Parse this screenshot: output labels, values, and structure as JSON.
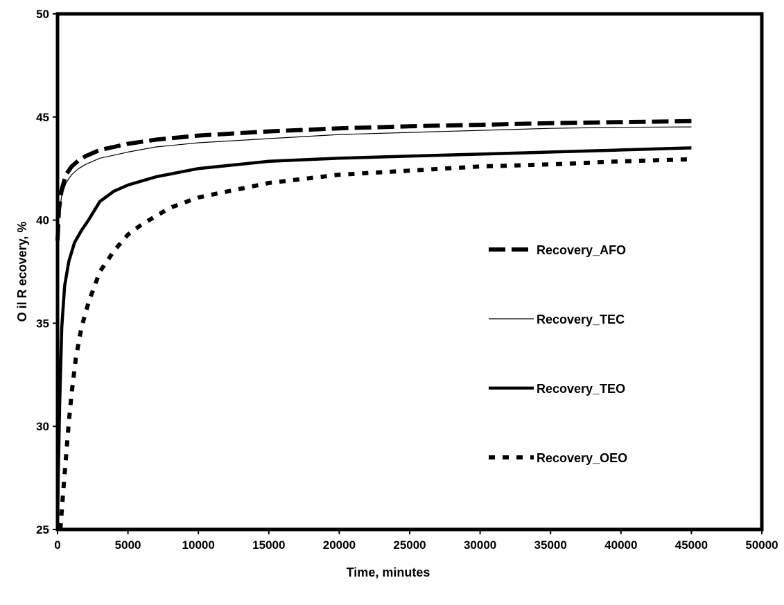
{
  "chart_data": {
    "type": "line",
    "title": "",
    "xlabel": "Time, minutes",
    "ylabel": "O il R ecovery, %",
    "xlim": [
      0,
      50000
    ],
    "ylim": [
      25,
      50
    ],
    "xticks": [
      "0",
      "5000",
      "10000",
      "15000",
      "20000",
      "25000",
      "30000",
      "35000",
      "40000",
      "45000",
      "50000"
    ],
    "yticks": [
      "25",
      "30",
      "35",
      "40",
      "45",
      "50"
    ],
    "grid": false,
    "legend_position": "right",
    "series": [
      {
        "name": "Recovery_AFO",
        "style": "long-dash",
        "color": "#000000",
        "x": [
          0,
          100,
          300,
          600,
          1000,
          1500,
          2000,
          3000,
          4000,
          5000,
          7000,
          10000,
          15000,
          20000,
          25000,
          30000,
          35000,
          40000,
          45000
        ],
        "y": [
          39.0,
          40.5,
          41.5,
          42.2,
          42.6,
          42.9,
          43.1,
          43.4,
          43.55,
          43.7,
          43.9,
          44.1,
          44.3,
          44.45,
          44.55,
          44.62,
          44.7,
          44.75,
          44.8
        ]
      },
      {
        "name": "Recovery_TEC",
        "style": "thin",
        "color": "#000000",
        "x": [
          0,
          100,
          300,
          600,
          1000,
          1500,
          2000,
          3000,
          4000,
          5000,
          7000,
          10000,
          15000,
          20000,
          25000,
          30000,
          35000,
          40000,
          45000
        ],
        "y": [
          39.0,
          40.3,
          41.2,
          41.8,
          42.2,
          42.5,
          42.7,
          43.0,
          43.15,
          43.3,
          43.55,
          43.75,
          43.95,
          44.15,
          44.25,
          44.35,
          44.45,
          44.5,
          44.52
        ]
      },
      {
        "name": "Recovery_TEO",
        "style": "thick",
        "color": "#000000",
        "x": [
          0,
          50,
          150,
          300,
          500,
          800,
          1200,
          1700,
          2200,
          3000,
          4000,
          5000,
          7000,
          10000,
          15000,
          20000,
          25000,
          30000,
          35000,
          40000,
          45000
        ],
        "y": [
          25.0,
          27.5,
          31.0,
          34.8,
          36.8,
          38.0,
          38.9,
          39.5,
          40.0,
          40.9,
          41.4,
          41.7,
          42.1,
          42.5,
          42.85,
          43.0,
          43.1,
          43.2,
          43.3,
          43.4,
          43.5
        ]
      },
      {
        "name": "Recovery_OEO",
        "style": "short-dash",
        "color": "#000000",
        "x": [
          200,
          400,
          600,
          800,
          1000,
          1300,
          1700,
          2200,
          3000,
          4000,
          5000,
          6000,
          8000,
          10000,
          15000,
          20000,
          25000,
          30000,
          35000,
          40000,
          45000
        ],
        "y": [
          25.0,
          26.8,
          28.5,
          30.2,
          31.6,
          33.3,
          34.8,
          36.0,
          37.5,
          38.5,
          39.3,
          39.8,
          40.6,
          41.1,
          41.8,
          42.2,
          42.4,
          42.6,
          42.7,
          42.85,
          42.95
        ]
      }
    ]
  }
}
